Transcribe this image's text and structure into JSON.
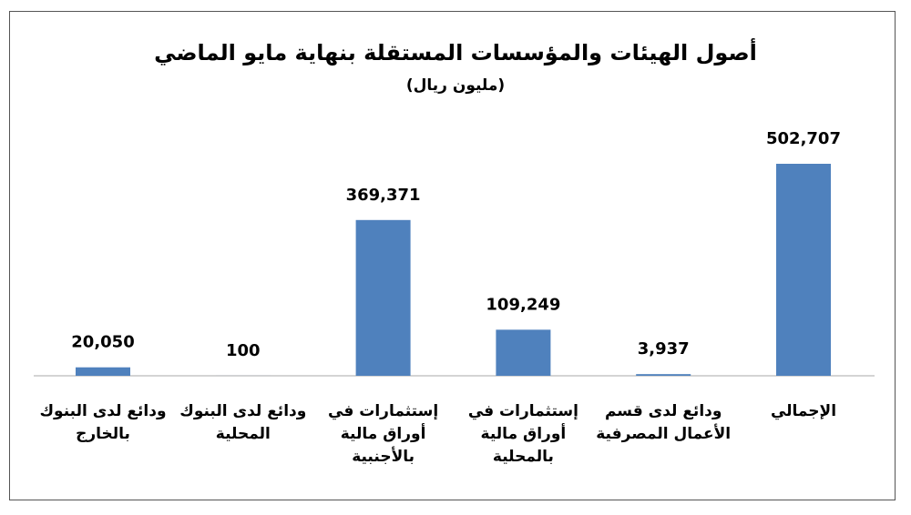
{
  "chart_data": {
    "type": "bar",
    "title": "أصول الهيئات والمؤسسات المستقلة بنهاية مايو الماضي",
    "subtitle": "(مليون ريال)",
    "categories": [
      "ودائع لدى البنوك بالخارج",
      "ودائع لدى البنوك المحلية",
      "إستثمارات في أوراق مالية بالأجنبية",
      "إستثمارات في أوراق مالية بالمحلية",
      "ودائع لدى قسم الأعمال المصرفية",
      "الإجمالي"
    ],
    "values": [
      20050,
      100,
      369371,
      109249,
      3937,
      502707
    ],
    "value_labels": [
      "20,050",
      "100",
      "369,371",
      "109,249",
      "3,937",
      "502,707"
    ],
    "color": "#4f81bd"
  }
}
